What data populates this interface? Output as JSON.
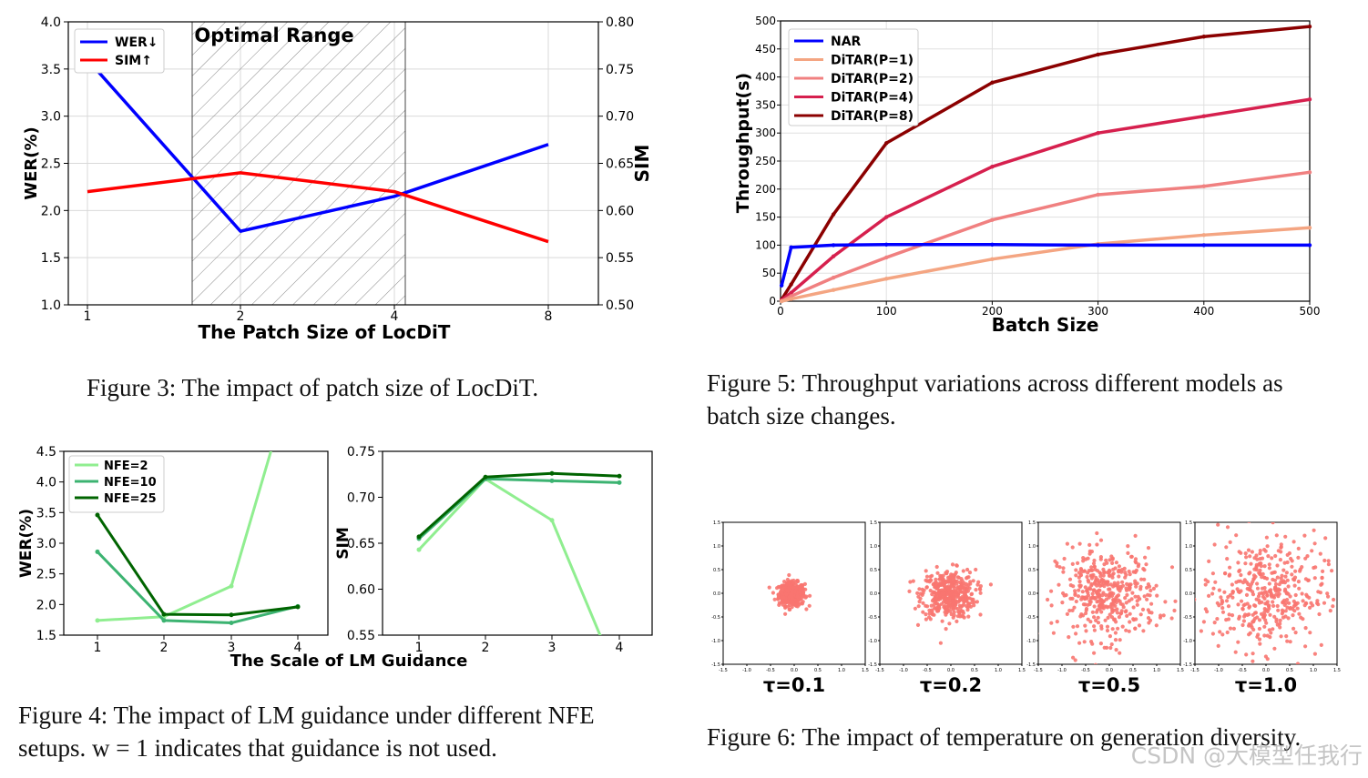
{
  "figure3": {
    "caption": "Figure 3: The impact of patch size of LocDiT.",
    "chart_data": {
      "type": "line",
      "xlabel": "The Patch Size of LocDiT",
      "ylabel_left": "WER(%)",
      "ylabel_right": "SIM",
      "x_ticks": [
        "1",
        "2",
        "4",
        "8"
      ],
      "yleft_ticks": [
        "1.0",
        "1.5",
        "2.0",
        "2.5",
        "3.0",
        "3.5",
        "4.0"
      ],
      "yright_ticks": [
        "0.50",
        "0.55",
        "0.60",
        "0.65",
        "0.70",
        "0.75",
        "0.80"
      ],
      "ylim_left": [
        1.0,
        4.0
      ],
      "ylim_right": [
        0.5,
        0.8
      ],
      "annotation": "Optimal Range",
      "series": [
        {
          "name": "WER↓",
          "axis": "left",
          "color": "#0000ff",
          "x": [
            1,
            2,
            4,
            8
          ],
          "y": [
            3.6,
            1.78,
            2.15,
            2.7
          ]
        },
        {
          "name": "SIM↑",
          "axis": "right",
          "color": "#ff0000",
          "x": [
            1,
            2,
            4,
            8
          ],
          "y": [
            0.62,
            0.64,
            0.62,
            0.567
          ]
        }
      ],
      "legend": "top-left"
    }
  },
  "figure4": {
    "caption_line1": "Figure 4: The impact of LM guidance under different NFE",
    "caption_line2": "setups. w = 1 indicates that guidance is not used.",
    "chart_data": [
      {
        "type": "line",
        "ylabel": "WER(%)",
        "x_ticks": [
          "1",
          "2",
          "3",
          "4"
        ],
        "y_ticks": [
          "1.5",
          "2.0",
          "2.5",
          "3.0",
          "3.5",
          "4.0",
          "4.5"
        ],
        "ylim": [
          1.5,
          4.5
        ],
        "series": [
          {
            "name": "NFE=2",
            "color": "#90ee90",
            "x": [
              1,
              2,
              3,
              4
            ],
            "y": [
              1.74,
              1.8,
              2.3,
              6.0
            ]
          },
          {
            "name": "NFE=10",
            "color": "#3cb371",
            "x": [
              1,
              2,
              3,
              4
            ],
            "y": [
              2.86,
              1.74,
              1.7,
              1.97
            ]
          },
          {
            "name": "NFE=25",
            "color": "#006400",
            "x": [
              1,
              2,
              3,
              4
            ],
            "y": [
              3.46,
              1.84,
              1.83,
              1.96
            ]
          }
        ],
        "legend": "top-left"
      },
      {
        "type": "line",
        "ylabel": "SIM",
        "x_ticks": [
          "1",
          "2",
          "3",
          "4"
        ],
        "y_ticks": [
          "0.55",
          "0.60",
          "0.65",
          "0.70",
          "0.75"
        ],
        "ylim": [
          0.55,
          0.75
        ],
        "series": [
          {
            "name": "NFE=2",
            "color": "#90ee90",
            "x": [
              1,
              2,
              3,
              4
            ],
            "y": [
              0.643,
              0.72,
              0.675,
              0.5
            ]
          },
          {
            "name": "NFE=10",
            "color": "#3cb371",
            "x": [
              1,
              2,
              3,
              4
            ],
            "y": [
              0.655,
              0.72,
              0.718,
              0.716
            ]
          },
          {
            "name": "NFE=25",
            "color": "#006400",
            "x": [
              1,
              2,
              3,
              4
            ],
            "y": [
              0.657,
              0.722,
              0.726,
              0.723
            ]
          }
        ]
      }
    ],
    "shared_xlabel": "The Scale of LM Guidance"
  },
  "figure5": {
    "caption_line1": "Figure 5: Throughput variations across different models as",
    "caption_line2": "batch size changes.",
    "chart_data": {
      "type": "line",
      "xlabel": "Batch Size",
      "ylabel": "Throughput(s)",
      "x_ticks": [
        "0",
        "100",
        "200",
        "300",
        "400",
        "500"
      ],
      "y_ticks": [
        "0",
        "50",
        "100",
        "150",
        "200",
        "250",
        "300",
        "350",
        "400",
        "450",
        "500"
      ],
      "xlim": [
        0,
        500
      ],
      "ylim": [
        0,
        500
      ],
      "legend": "top-left",
      "series": [
        {
          "name": "NAR",
          "color": "#0000ff",
          "x": [
            1,
            10,
            50,
            100,
            200,
            300,
            400,
            500
          ],
          "y": [
            28,
            96,
            100,
            101,
            101,
            100,
            100,
            100
          ]
        },
        {
          "name": "DiTAR(P=1)",
          "color": "#f4a582",
          "x": [
            1,
            10,
            50,
            100,
            200,
            300,
            400,
            500
          ],
          "y": [
            0,
            4,
            20,
            40,
            75,
            102,
            118,
            131
          ]
        },
        {
          "name": "DiTAR(P=2)",
          "color": "#f08080",
          "x": [
            1,
            10,
            50,
            100,
            200,
            300,
            400,
            500
          ],
          "y": [
            0,
            9,
            42,
            78,
            145,
            190,
            205,
            230
          ]
        },
        {
          "name": "DiTAR(P=4)",
          "color": "#d6204e",
          "x": [
            1,
            10,
            50,
            100,
            200,
            300,
            400,
            500
          ],
          "y": [
            2,
            15,
            80,
            150,
            240,
            300,
            330,
            360
          ]
        },
        {
          "name": "DiTAR(P=8)",
          "color": "#8b0000",
          "x": [
            1,
            10,
            50,
            100,
            200,
            300,
            400,
            500
          ],
          "y": [
            3,
            30,
            155,
            282,
            390,
            440,
            472,
            490
          ]
        }
      ]
    }
  },
  "figure6": {
    "caption": "Figure 6: The impact of temperature on generation diversity.",
    "chart_data": [
      {
        "type": "scatter",
        "xlabel": "τ=0.1",
        "temperature": 0.1,
        "spread": 0.13,
        "xlim": [
          -1.5,
          1.5
        ],
        "ylim": [
          -1.5,
          1.5
        ]
      },
      {
        "type": "scatter",
        "xlabel": "τ=0.2",
        "temperature": 0.2,
        "spread": 0.27,
        "xlim": [
          -1.5,
          1.5
        ],
        "ylim": [
          -1.5,
          1.5
        ]
      },
      {
        "type": "scatter",
        "xlabel": "τ=0.5",
        "temperature": 0.5,
        "spread": 0.5,
        "xlim": [
          -1.5,
          1.5
        ],
        "ylim": [
          -1.5,
          1.5
        ]
      },
      {
        "type": "scatter",
        "xlabel": "τ=1.0",
        "temperature": 1.0,
        "spread": 0.62,
        "xlim": [
          -1.5,
          1.5
        ],
        "ylim": [
          -1.5,
          1.5
        ]
      }
    ],
    "tick_labels": [
      "-1.5",
      "-1.0",
      "-0.5",
      "0.0",
      "0.5",
      "1.0",
      "1.5"
    ],
    "point_color": "#f87670"
  },
  "watermark": "CSDN @大模型任我行"
}
